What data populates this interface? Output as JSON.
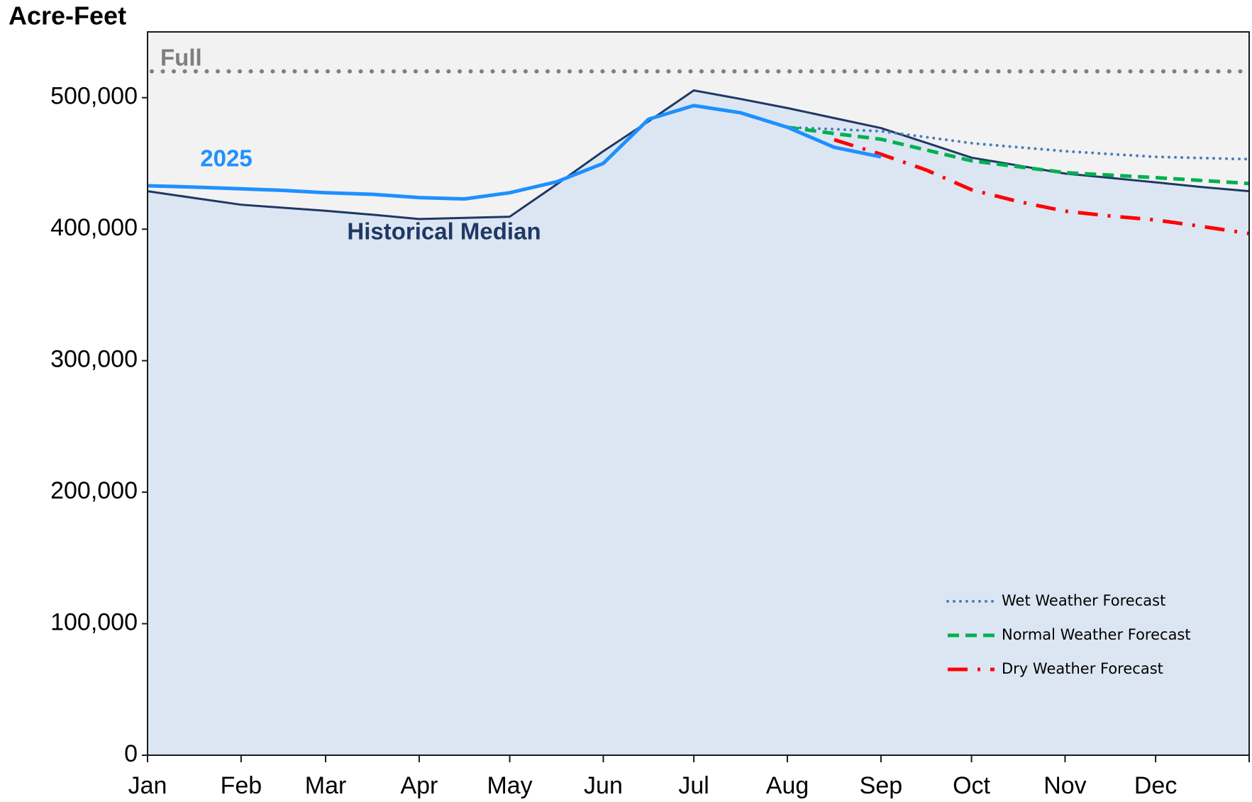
{
  "chart_data": {
    "type": "line",
    "title": "Acre-Feet",
    "categories": [
      "Jan",
      null,
      "Feb",
      null,
      "Mar",
      null,
      "Apr",
      null,
      "May",
      null,
      "Jun",
      null,
      "Jul",
      null,
      "Aug",
      null,
      "Sep",
      null,
      "Oct",
      null,
      "Nov",
      null,
      "Dec",
      null,
      null
    ],
    "ylim": [
      0,
      550000
    ],
    "yticks": [
      0,
      {
        "value": 100000,
        "label": "100,000"
      },
      {
        "value": 200000,
        "label": "200,000"
      },
      {
        "value": 300000,
        "label": "300,000"
      },
      {
        "value": 400000,
        "label": "400,000"
      },
      {
        "value": 500000,
        "label": "500,000"
      }
    ],
    "reference_line": {
      "label": "Full",
      "value": 520000,
      "color": "#7f7f7f"
    },
    "series": [
      {
        "name": "Historical Median",
        "color": "#1f3864",
        "fill": "#dce6f2",
        "values": [
          428900,
          423700,
          418600,
          416300,
          414000,
          411000,
          407700,
          408600,
          409500,
          434000,
          459300,
          482000,
          505500,
          499000,
          492100,
          484500,
          476900,
          465700,
          454400,
          448400,
          442300,
          439000,
          435600,
          432000,
          428900
        ]
      },
      {
        "name": "2025",
        "color": "#1e90ff",
        "values": [
          433000,
          432000,
          430700,
          429500,
          427700,
          426500,
          424000,
          423000,
          427700,
          436000,
          450000,
          483600,
          494000,
          488500,
          477500,
          462300,
          455000,
          null,
          null,
          null,
          null,
          null,
          null,
          null,
          null
        ]
      },
      {
        "name": "Wet Weather Forecast",
        "color": "#4a7ebb",
        "style": "dotted",
        "values": [
          null,
          null,
          null,
          null,
          null,
          null,
          null,
          null,
          null,
          null,
          null,
          null,
          null,
          null,
          477500,
          476000,
          474500,
          470000,
          465400,
          462300,
          459300,
          457100,
          455000,
          454100,
          453200
        ]
      },
      {
        "name": "Normal Weather Forecast",
        "color": "#00b050",
        "style": "dashed",
        "values": [
          null,
          null,
          null,
          null,
          null,
          null,
          null,
          null,
          null,
          null,
          null,
          null,
          null,
          null,
          477500,
          472700,
          468400,
          460200,
          452000,
          447500,
          443000,
          441100,
          439200,
          437000,
          434700
        ]
      },
      {
        "name": "Dry Weather Forecast",
        "color": "#ff0000",
        "style": "dashdot",
        "values": [
          null,
          null,
          null,
          null,
          null,
          null,
          null,
          null,
          null,
          null,
          null,
          null,
          null,
          null,
          null,
          468000,
          457000,
          445000,
          430000,
          421000,
          413700,
          410000,
          407000,
          402000,
          396700
        ]
      }
    ]
  }
}
